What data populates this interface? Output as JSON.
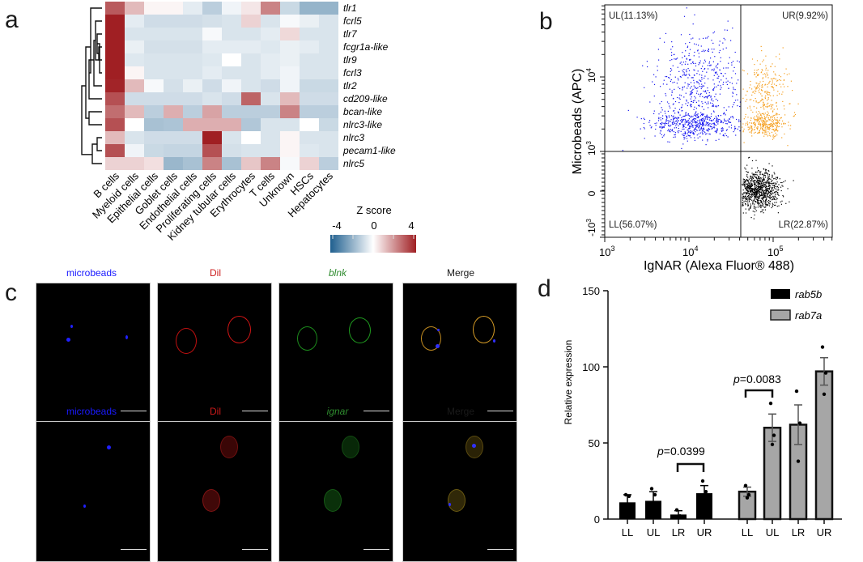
{
  "panels": {
    "a": "a",
    "b": "b",
    "c": "c",
    "d": "d"
  },
  "chart_data": [
    {
      "type": "heatmap",
      "panel": "a",
      "title": "",
      "columns": [
        "B cells",
        "Myeloid cells",
        "Epithelial cells",
        "Goblet cells",
        "Endothelial cells",
        "Proliferating cells",
        "Kidney tubular cells",
        "Erythrocytes",
        "T cells",
        "Unknown",
        "HSCs",
        "Hepatocytes"
      ],
      "rows": [
        "tlr1",
        "fcrl5",
        "tlr7",
        "fcgr1a-like",
        "tlr9",
        "fcrl3",
        "tlr2",
        "cd209-like",
        "bcan-like",
        "nlrc3-like",
        "nlrc3",
        "pecam1-like",
        "nlrc5"
      ],
      "values": [
        [
          2.8,
          1.0,
          0.1,
          0.1,
          -0.4,
          -1.2,
          -0.2,
          0.3,
          2.0,
          -0.9,
          -2.0,
          -2.0
        ],
        [
          4.0,
          -0.4,
          -0.8,
          -0.8,
          -0.8,
          -0.7,
          -0.6,
          0.6,
          -0.6,
          -0.1,
          -0.3,
          -0.6
        ],
        [
          4.0,
          -0.6,
          -0.6,
          -0.6,
          -0.6,
          -0.1,
          -0.6,
          -0.6,
          -0.4,
          0.5,
          -0.6,
          -0.6
        ],
        [
          4.0,
          -0.3,
          -0.7,
          -0.7,
          -0.7,
          -0.4,
          -0.4,
          -0.4,
          -0.5,
          -0.3,
          -0.4,
          -0.6
        ],
        [
          4.0,
          -0.5,
          -0.6,
          -0.6,
          -0.6,
          -0.5,
          0.0,
          -0.6,
          -0.4,
          -0.3,
          -0.6,
          -0.6
        ],
        [
          4.0,
          0.1,
          -0.6,
          -0.6,
          -0.6,
          -0.4,
          -0.6,
          -0.6,
          -0.4,
          -0.2,
          -0.6,
          -0.6
        ],
        [
          3.9,
          1.0,
          -0.1,
          -0.7,
          -0.3,
          -0.8,
          -0.2,
          -0.6,
          -0.8,
          -0.2,
          -0.9,
          -0.9
        ],
        [
          3.0,
          -0.8,
          -0.8,
          -0.8,
          -0.8,
          -0.6,
          -0.8,
          2.6,
          -0.6,
          1.0,
          -0.8,
          -0.8
        ],
        [
          2.4,
          1.0,
          -1.2,
          1.2,
          -1.2,
          1.4,
          -1.2,
          -1.2,
          -1.2,
          2.0,
          -1.2,
          -1.2
        ],
        [
          3.0,
          0.0,
          -1.6,
          -1.5,
          1.2,
          1.2,
          1.2,
          -1.4,
          -0.6,
          -0.6,
          0.0,
          -0.9
        ],
        [
          1.0,
          -0.6,
          -0.8,
          -0.8,
          -0.8,
          4.0,
          -0.6,
          0.0,
          -0.6,
          0.1,
          -0.6,
          -0.6
        ],
        [
          3.0,
          -0.2,
          -0.9,
          -1.0,
          -1.0,
          3.0,
          -0.7,
          -0.6,
          -0.6,
          0.1,
          -0.5,
          -0.6
        ],
        [
          0.6,
          0.6,
          0.4,
          -1.9,
          -1.6,
          2.0,
          -1.6,
          0.8,
          2.0,
          -0.1,
          0.6,
          -1.2
        ]
      ],
      "colorbar": {
        "title": "Z score",
        "range": [
          -4,
          4
        ],
        "ticks": [
          "-4",
          "0",
          "4"
        ],
        "low_color": "#1f5f8f",
        "mid_color": "#ffffff",
        "high_color": "#a01f23"
      },
      "row_dendrogram": true
    },
    {
      "type": "scatter",
      "panel": "b",
      "xlabel": "IgNAR (Alexa Fluor® 488)",
      "ylabel": "Microbeads (APC)",
      "x_scale": "log",
      "x_ticks": [
        {
          "base": "10",
          "exp": "3"
        },
        {
          "base": "10",
          "exp": "4"
        },
        {
          "base": "10",
          "exp": "5"
        }
      ],
      "y_ticks": [
        {
          "base": "-10",
          "exp": "3"
        },
        {
          "base": "0",
          "exp": ""
        },
        {
          "base": "10",
          "exp": "3"
        },
        {
          "base": "10",
          "exp": "4"
        }
      ],
      "gates": [
        {
          "name": "UL",
          "label": "UL(11.13%)",
          "percent": 11.13,
          "color": "#1414f0",
          "position": "top-left"
        },
        {
          "name": "UR",
          "label": "UR(9.92%)",
          "percent": 9.92,
          "color": "#f5a020",
          "position": "top-right"
        },
        {
          "name": "LL",
          "label": "LL(56.07%)",
          "percent": 56.07,
          "color": "#1414f0",
          "position": "bottom-left"
        },
        {
          "name": "LR",
          "label": "LR(22.87%)",
          "percent": 22.87,
          "color": "#000000",
          "position": "bottom-right"
        }
      ]
    },
    {
      "type": "bar",
      "panel": "d",
      "title": "",
      "ylabel": "Relative expression",
      "ylim": [
        0,
        150
      ],
      "y_ticks": [
        0,
        50,
        100,
        150
      ],
      "groups": [
        {
          "name": "rab5b",
          "color": "#000000",
          "categories": [
            "LL",
            "UL",
            "LR",
            "UR"
          ],
          "values": [
            11,
            12,
            3,
            17
          ],
          "errors": [
            5,
            6,
            2.5,
            5
          ],
          "points": [
            [
              16,
              15,
              5
            ],
            [
              20,
              16,
              5
            ],
            [
              6,
              2,
              1
            ],
            [
              25,
              18,
              12
            ]
          ]
        },
        {
          "name": "rab7a",
          "color": "#a6a6a6",
          "categories": [
            "LL",
            "UL",
            "LR",
            "UR"
          ],
          "values": [
            18,
            60,
            62,
            97
          ],
          "errors": [
            3,
            9,
            13,
            9
          ],
          "points": [
            [
              22,
              16,
              14
            ],
            [
              76,
              55,
              49
            ],
            [
              84,
              63,
              38
            ],
            [
              113,
              96,
              82
            ]
          ]
        }
      ],
      "annotations": [
        {
          "text_p": "p",
          "text_val": "=0.0399",
          "between": [
            "rab5b LR",
            "rab5b UR"
          ]
        },
        {
          "text_p": "p",
          "text_val": "=0.0083",
          "between": [
            "rab7a LL",
            "rab7a UL"
          ]
        }
      ],
      "legend": {
        "position": "top-right",
        "entries": [
          "rab5b",
          "rab7a"
        ]
      }
    }
  ],
  "microscopy": {
    "rows": [
      {
        "labels": [
          "microbeads",
          "Dil",
          "blnk",
          "Merge"
        ],
        "italic_marker": "blnk"
      },
      {
        "labels": [
          "microbeads",
          "Dil",
          "ignar",
          "Merge"
        ],
        "italic_marker": "ignar"
      }
    ],
    "label_colors": [
      "#1a1aff",
      "#cc1a1a",
      "#2e8b2e",
      "#1a1a1a"
    ]
  }
}
